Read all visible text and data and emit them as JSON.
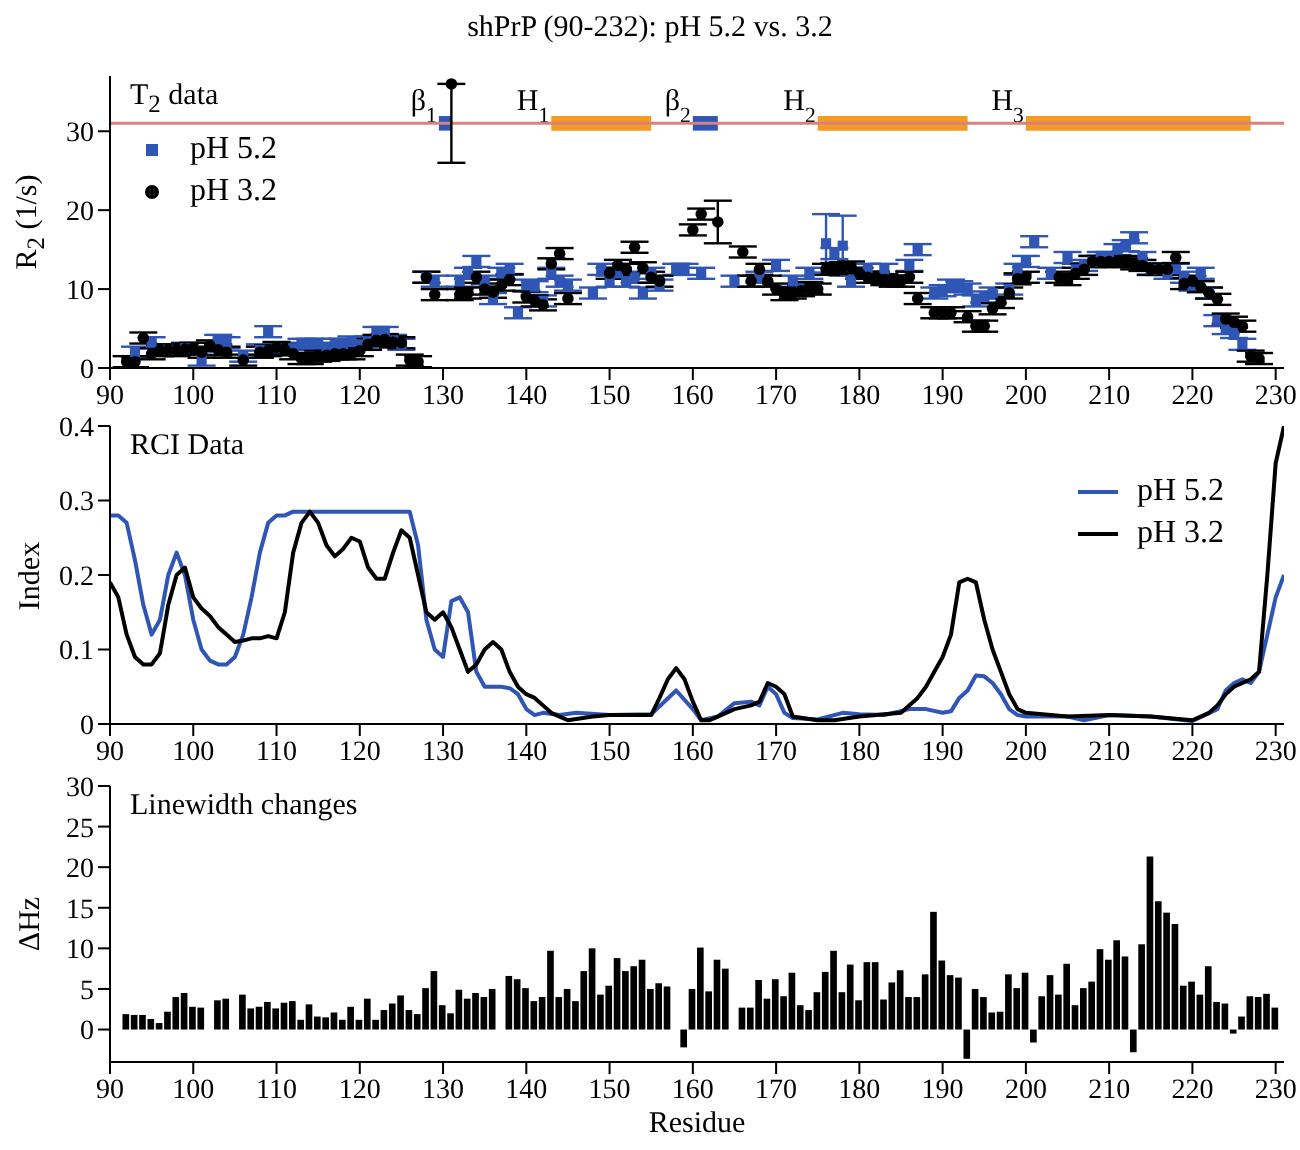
{
  "chart_data": [
    {
      "type": "scatter",
      "title": "shPrP (90-232): pH 5.2 vs. 3.2",
      "ylabel": "R$_{2}$ (1/s)",
      "annotations": [
        "T$_{2}$ data"
      ],
      "xlim": [
        90,
        231
      ],
      "xticks": [
        90,
        100,
        110,
        120,
        130,
        140,
        150,
        160,
        170,
        180,
        190,
        200,
        210,
        220,
        230
      ],
      "ylim": [
        0,
        37
      ],
      "yticks": [
        0,
        10,
        20,
        30
      ],
      "legend": "top left",
      "ref_lines": [
        {
          "axis": "y",
          "value": 31,
          "color": "#d98080"
        }
      ],
      "bands": [
        {
          "axis": "x",
          "from": 129.5,
          "to": 131,
          "label": "β$_{1}$",
          "color": "#2f55b5"
        },
        {
          "axis": "x",
          "from": 143,
          "to": 155,
          "label": "H$_{1}$",
          "color": "#f59a23"
        },
        {
          "axis": "x",
          "from": 160,
          "to": 163,
          "label": "β$_{2}$",
          "color": "#2f55b5"
        },
        {
          "axis": "x",
          "from": 175,
          "to": 193,
          "label": "H$_{2}$",
          "color": "#f59a23"
        },
        {
          "axis": "x",
          "from": 200,
          "to": 227,
          "label": "H$_{3}$",
          "color": "#f59a23"
        }
      ],
      "series": [
        {
          "name": "pH 5.2",
          "color": "#2f55b5",
          "marker": "square",
          "x": [
            93,
            95,
            97,
            99,
            101,
            103,
            104,
            106,
            108,
            109,
            110,
            112,
            113,
            114,
            115,
            116,
            117,
            118,
            119,
            120,
            121,
            122,
            123,
            124,
            125,
            128,
            129,
            132,
            133,
            134,
            135,
            136,
            137,
            138,
            139,
            140,
            141,
            142,
            143,
            144,
            145,
            148,
            149,
            150,
            151,
            152,
            153,
            154,
            155,
            156,
            158,
            159,
            161,
            165,
            168,
            170,
            172,
            173,
            174,
            176,
            177,
            178,
            179,
            180,
            181,
            183,
            186,
            187,
            189,
            190,
            191,
            192,
            193,
            194,
            195,
            196,
            198,
            199,
            200,
            201,
            203,
            205,
            206,
            207,
            208,
            209,
            210,
            211,
            212,
            213,
            214,
            215,
            216,
            217,
            218,
            219,
            220,
            221,
            222,
            223,
            224,
            225,
            226
          ],
          "values": [
            2.0,
            3.2,
            2.3,
            2.5,
            1.0,
            3.5,
            3.2,
            1.5,
            2.3,
            4.6,
            2.5,
            2.5,
            3.0,
            3.0,
            3.0,
            2.5,
            3.0,
            3.0,
            3.3,
            3.0,
            3.3,
            4.5,
            4.5,
            3.5,
            3.0,
            11.5,
            11.0,
            11.0,
            12.0,
            13.5,
            11.0,
            8.8,
            12.0,
            12.5,
            7.0,
            10.5,
            10.3,
            8.5,
            12.0,
            11.0,
            10.5,
            9.5,
            12.5,
            11.0,
            12.0,
            11.0,
            11.5,
            9.5,
            12.0,
            10.5,
            12.5,
            12.5,
            12.0,
            11.0,
            11.5,
            13.0,
            11.0,
            10.0,
            12.0,
            15.8,
            14.5,
            15.5,
            11.0,
            12.0,
            12.5,
            12.5,
            13.0,
            15.0,
            9.5,
            9.8,
            10.5,
            10.3,
            10.0,
            8.5,
            9.0,
            9.5,
            10.0,
            12.5,
            13.5,
            16.0,
            12.0,
            14.0,
            12.5,
            13.0,
            13.5,
            14.0,
            14.0,
            15.0,
            15.5,
            16.5,
            14.0,
            12.5,
            12.5,
            12.0,
            12.5,
            11.5,
            10.5,
            12.0,
            9.5,
            6.0,
            5.0,
            4.5,
            3.0
          ],
          "errors": [
            0.7,
            0.7,
            0.7,
            0.7,
            0.7,
            0.7,
            0.7,
            0.7,
            0.7,
            0.7,
            0.7,
            0.7,
            0.7,
            0.7,
            0.7,
            0.7,
            0.7,
            0.7,
            0.7,
            0.7,
            0.7,
            0.7,
            0.7,
            0.7,
            0.7,
            0.7,
            0.7,
            0.7,
            0.7,
            0.7,
            0.7,
            0.7,
            0.7,
            0.7,
            0.7,
            0.7,
            0.7,
            0.7,
            0.7,
            0.7,
            0.7,
            0.7,
            0.7,
            0.7,
            0.7,
            0.7,
            0.7,
            0.7,
            0.7,
            0.7,
            0.7,
            0.7,
            0.7,
            0.7,
            0.7,
            0.7,
            0.7,
            0.7,
            0.7,
            3.7,
            0.7,
            3.8,
            0.7,
            0.7,
            0.7,
            0.7,
            0.7,
            0.7,
            0.7,
            0.7,
            0.7,
            0.7,
            0.7,
            0.7,
            0.7,
            0.7,
            0.7,
            0.7,
            0.7,
            0.7,
            0.7,
            0.7,
            0.7,
            0.7,
            0.7,
            0.7,
            0.7,
            0.7,
            0.7,
            0.7,
            0.7,
            0.7,
            0.7,
            0.7,
            0.7,
            0.7,
            0.7,
            0.7,
            0.7,
            0.7,
            0.7,
            0.7,
            0.7
          ]
        },
        {
          "name": "pH 3.2",
          "color": "#000000",
          "marker": "circle",
          "x": [
            92,
            93,
            94,
            95,
            96,
            97,
            98,
            99,
            100,
            101,
            102,
            103,
            104,
            106,
            108,
            109,
            110,
            111,
            112,
            113,
            114,
            115,
            116,
            117,
            118,
            119,
            120,
            121,
            122,
            123,
            124,
            125,
            126,
            127,
            128,
            129,
            131,
            132,
            133,
            134,
            135,
            136,
            137,
            138,
            140,
            141,
            142,
            143,
            144,
            145,
            150,
            151,
            152,
            153,
            154,
            155,
            156,
            160,
            161,
            163,
            166,
            167,
            168,
            169,
            170,
            171,
            172,
            173,
            174,
            175,
            176,
            177,
            178,
            179,
            180,
            181,
            182,
            183,
            184,
            185,
            186,
            187,
            189,
            190,
            191,
            193,
            194,
            195,
            196,
            197,
            198,
            199,
            200,
            204,
            205,
            206,
            207,
            208,
            209,
            210,
            211,
            212,
            213,
            214,
            215,
            216,
            217,
            218,
            219,
            220,
            221,
            222,
            223,
            224,
            225,
            226,
            227,
            228
          ],
          "values": [
            0.8,
            0.8,
            3.8,
            1.8,
            2.2,
            2.3,
            2.2,
            2.4,
            2.5,
            2.0,
            2.8,
            2.3,
            2.0,
            1.0,
            2.0,
            2.2,
            2.6,
            2.3,
            1.8,
            1.2,
            1.2,
            1.5,
            1.6,
            1.8,
            1.8,
            1.8,
            2.2,
            3.0,
            3.5,
            3.6,
            3.3,
            3.2,
            1.0,
            0.8,
            11.5,
            9.3,
            36,
            9.3,
            9.5,
            11.5,
            10.0,
            9.6,
            10.5,
            11.2,
            9.0,
            8.5,
            8.0,
            13.2,
            14.5,
            8.8,
            12.0,
            13.0,
            12.5,
            15.3,
            12.7,
            11.5,
            11.0,
            17.5,
            19.5,
            18.5,
            14.7,
            11.0,
            12.5,
            11.0,
            10.0,
            9.3,
            9.5,
            9.8,
            10.2,
            10.0,
            12.5,
            12.6,
            12.7,
            12.8,
            12.0,
            11.5,
            11.5,
            11.2,
            11.0,
            11.0,
            11.5,
            8.8,
            7.0,
            7.0,
            7.0,
            6.5,
            5.3,
            5.3,
            7.5,
            8.3,
            9.5,
            11.3,
            11.5,
            11.5,
            11.2,
            12.0,
            12.5,
            13.5,
            13.5,
            13.5,
            13.5,
            13.5,
            13.2,
            13.0,
            12.5,
            12.5,
            12.5,
            14.0,
            10.7,
            11.0,
            10.3,
            9.5,
            8.7,
            6.2,
            5.8,
            5.3,
            1.5,
            1.2
          ],
          "errors": [
            0.7,
            0.7,
            0.7,
            0.7,
            0.7,
            0.7,
            0.7,
            0.7,
            0.7,
            0.7,
            0.7,
            0.7,
            0.7,
            0.7,
            0.7,
            0.7,
            0.7,
            0.7,
            0.7,
            0.7,
            0.7,
            0.7,
            0.7,
            0.7,
            0.7,
            0.7,
            0.7,
            0.7,
            0.7,
            0.7,
            0.7,
            0.7,
            0.7,
            0.7,
            0.7,
            0.7,
            [
              26,
              36
            ],
            0.7,
            0.7,
            0.7,
            0.7,
            0.7,
            0.7,
            0.7,
            0.7,
            0.7,
            0.7,
            0.7,
            0.7,
            0.7,
            0.7,
            0.7,
            0.7,
            0.7,
            0.7,
            0.7,
            0.7,
            0.7,
            0.7,
            2.7,
            0.7,
            0.7,
            0.7,
            0.7,
            0.7,
            0.7,
            0.7,
            0.7,
            0.7,
            0.7,
            0.7,
            0.7,
            0.7,
            0.7,
            0.7,
            0.7,
            0.7,
            0.7,
            0.7,
            0.7,
            0.7,
            0.7,
            0.7,
            0.7,
            0.7,
            0.7,
            0.7,
            0.7,
            0.7,
            0.7,
            0.7,
            0.7,
            0.7,
            0.7,
            0.7,
            0.7,
            0.7,
            0.7,
            0.7,
            0.7,
            0.7,
            0.7,
            0.7,
            0.7,
            0.7,
            0.7,
            0.7,
            0.7,
            0.7,
            0.7,
            0.7,
            0.7,
            0.7,
            0.7,
            0.7,
            0.7,
            0.7,
            0.7
          ]
        }
      ]
    },
    {
      "type": "line",
      "ylabel": "Index",
      "annotations": [
        "RCI Data"
      ],
      "xlim": [
        90,
        231
      ],
      "xticks": [
        90,
        100,
        110,
        120,
        130,
        140,
        150,
        160,
        170,
        180,
        190,
        200,
        210,
        220,
        230
      ],
      "ylim": [
        0,
        0.4
      ],
      "yticks": [
        0,
        0.1,
        0.2,
        0.3,
        0.4
      ],
      "legend": "top right",
      "series": [
        {
          "name": "pH 5.2",
          "color": "#2f55b5",
          "x": [
            90,
            91,
            92,
            93,
            94,
            95,
            96,
            97,
            98,
            99,
            100,
            101,
            102,
            103,
            104,
            105,
            106,
            107,
            108,
            109,
            110,
            111,
            112,
            126,
            127,
            128,
            129,
            130,
            131,
            132,
            133,
            134,
            135,
            136,
            137,
            138,
            139,
            140,
            141,
            142,
            144,
            146,
            150,
            155,
            158,
            160,
            161,
            163,
            165,
            167,
            168,
            169,
            170,
            171,
            172,
            175,
            178,
            180,
            183,
            186,
            188,
            190,
            191,
            192,
            193,
            194,
            195,
            196,
            197,
            198,
            199,
            200,
            205,
            207,
            210,
            215,
            220,
            223,
            224,
            225,
            226,
            227,
            228,
            229,
            230,
            231
          ],
          "values": [
            0.28,
            0.28,
            0.27,
            0.22,
            0.16,
            0.12,
            0.14,
            0.2,
            0.23,
            0.2,
            0.14,
            0.1,
            0.085,
            0.08,
            0.08,
            0.09,
            0.12,
            0.17,
            0.23,
            0.27,
            0.28,
            0.28,
            0.285,
            0.285,
            0.24,
            0.14,
            0.1,
            0.09,
            0.165,
            0.17,
            0.15,
            0.07,
            0.05,
            0.05,
            0.05,
            0.048,
            0.04,
            0.02,
            0.012,
            0.015,
            0.012,
            0.015,
            0.012,
            0.013,
            0.045,
            0.02,
            0.005,
            0.01,
            0.028,
            0.03,
            0.025,
            0.05,
            0.04,
            0.015,
            0.008,
            0.006,
            0.015,
            0.013,
            0.012,
            0.02,
            0.02,
            0.015,
            0.017,
            0.035,
            0.045,
            0.065,
            0.064,
            0.055,
            0.04,
            0.02,
            0.012,
            0.01,
            0.01,
            0.005,
            0.012,
            0.01,
            0.004,
            0.02,
            0.045,
            0.055,
            0.06,
            0.055,
            0.07,
            0.12,
            0.17,
            0.2
          ]
        },
        {
          "name": "pH 3.2",
          "color": "#000000",
          "x": [
            90,
            91,
            92,
            93,
            94,
            95,
            96,
            97,
            98,
            99,
            100,
            101,
            102,
            103,
            104,
            105,
            106,
            107,
            108,
            109,
            110,
            111,
            112,
            113,
            114,
            115,
            116,
            117,
            118,
            119,
            120,
            121,
            122,
            123,
            124,
            125,
            126,
            127,
            128,
            129,
            130,
            131,
            132,
            133,
            134,
            135,
            136,
            137,
            138,
            139,
            140,
            141,
            142,
            143,
            144,
            145,
            148,
            150,
            155,
            156,
            157,
            158,
            159,
            160,
            161,
            162,
            163,
            165,
            167,
            168,
            169,
            170,
            171,
            172,
            175,
            177,
            180,
            185,
            187,
            188,
            189,
            190,
            191,
            192,
            193,
            194,
            195,
            196,
            197,
            198,
            199,
            200,
            205,
            210,
            215,
            220,
            222,
            223,
            224,
            225,
            226,
            227,
            228,
            229,
            230,
            231
          ],
          "values": [
            0.19,
            0.17,
            0.12,
            0.09,
            0.08,
            0.08,
            0.095,
            0.16,
            0.2,
            0.21,
            0.17,
            0.155,
            0.145,
            0.13,
            0.12,
            0.11,
            0.112,
            0.115,
            0.115,
            0.118,
            0.115,
            0.15,
            0.23,
            0.27,
            0.285,
            0.27,
            0.24,
            0.225,
            0.235,
            0.25,
            0.245,
            0.21,
            0.195,
            0.195,
            0.23,
            0.26,
            0.25,
            0.2,
            0.15,
            0.14,
            0.15,
            0.13,
            0.1,
            0.07,
            0.08,
            0.1,
            0.11,
            0.1,
            0.07,
            0.05,
            0.04,
            0.035,
            0.025,
            0.015,
            0.01,
            0.005,
            0.01,
            0.012,
            0.012,
            0.035,
            0.06,
            0.075,
            0.06,
            0.03,
            0.005,
            0.005,
            0.01,
            0.02,
            0.025,
            0.03,
            0.055,
            0.05,
            0.04,
            0.01,
            0.005,
            0.005,
            0.01,
            0.015,
            0.035,
            0.05,
            0.07,
            0.09,
            0.12,
            0.19,
            0.195,
            0.19,
            0.14,
            0.1,
            0.07,
            0.04,
            0.02,
            0.015,
            0.01,
            0.012,
            0.01,
            0.005,
            0.015,
            0.025,
            0.04,
            0.05,
            0.055,
            0.06,
            0.07,
            0.2,
            0.35,
            0.4
          ]
        }
      ]
    },
    {
      "type": "bar",
      "ylabel": "ΔHz",
      "xlabel": "Residue",
      "annotations": [
        "Linewidth changes"
      ],
      "xlim": [
        90,
        231
      ],
      "xticks": [
        90,
        100,
        110,
        120,
        130,
        140,
        150,
        160,
        170,
        180,
        190,
        200,
        210,
        220,
        230
      ],
      "ylim": [
        -4,
        30
      ],
      "yticks": [
        0,
        5,
        10,
        15,
        20,
        25,
        30
      ],
      "color": "#000000",
      "x": [
        92,
        93,
        94,
        95,
        96,
        97,
        98,
        99,
        100,
        101,
        102,
        103,
        104,
        105,
        106,
        107,
        108,
        109,
        110,
        111,
        112,
        113,
        114,
        115,
        116,
        117,
        118,
        119,
        120,
        121,
        122,
        123,
        124,
        125,
        126,
        127,
        128,
        129,
        130,
        131,
        132,
        133,
        134,
        135,
        136,
        137,
        138,
        139,
        140,
        141,
        142,
        143,
        144,
        145,
        146,
        147,
        148,
        149,
        150,
        151,
        152,
        153,
        154,
        155,
        156,
        157,
        158,
        159,
        160,
        161,
        162,
        163,
        164,
        165,
        166,
        167,
        168,
        169,
        170,
        171,
        172,
        173,
        174,
        175,
        176,
        177,
        178,
        179,
        180,
        181,
        182,
        183,
        184,
        185,
        186,
        187,
        188,
        189,
        190,
        191,
        192,
        193,
        194,
        195,
        196,
        197,
        198,
        199,
        200,
        201,
        202,
        203,
        204,
        205,
        206,
        207,
        208,
        209,
        210,
        211,
        212,
        213,
        214,
        215,
        216,
        217,
        218,
        219,
        220,
        221,
        222,
        223,
        224,
        225,
        226,
        227,
        228,
        229,
        230
      ],
      "values": [
        1.9,
        1.8,
        1.8,
        1.3,
        0.8,
        2.2,
        4.0,
        4.5,
        2.8,
        2.7,
        0,
        3.6,
        3.8,
        0,
        4.3,
        2.6,
        2.8,
        3.4,
        2.6,
        3.3,
        3.5,
        1.2,
        3.1,
        1.6,
        1.5,
        2.1,
        1.2,
        2.8,
        1.2,
        3.8,
        1.2,
        2.4,
        3.2,
        4.2,
        2.4,
        1.9,
        5.1,
        7.2,
        3.0,
        2.0,
        4.9,
        3.8,
        4.5,
        4.0,
        5.0,
        0,
        6.6,
        6.2,
        5.1,
        3.5,
        4.0,
        9.7,
        4.0,
        5.0,
        3.5,
        7.2,
        10.0,
        4.3,
        5.4,
        8.8,
        7.2,
        7.8,
        8.6,
        5.0,
        5.7,
        5.3,
        0,
        -2.2,
        5.0,
        10.1,
        4.7,
        8.6,
        7.5,
        0,
        2.7,
        2.7,
        6.1,
        3.8,
        6.2,
        4.1,
        7.0,
        3.0,
        2.4,
        4.6,
        7.1,
        9.7,
        4.6,
        8.0,
        3.6,
        8.3,
        8.3,
        3.7,
        5.8,
        7.3,
        4.0,
        4.0,
        6.8,
        14.5,
        8.5,
        6.7,
        6.4,
        -3.6,
        5.0,
        4.0,
        2.1,
        2.2,
        6.8,
        5.1,
        7.0,
        -1.6,
        4.1,
        6.7,
        4.3,
        8.1,
        3.0,
        5.1,
        5.9,
        9.9,
        8.6,
        11.0,
        9.0,
        -2.8,
        10.5,
        21.3,
        15.8,
        14.4,
        13.0,
        5.4,
        5.9,
        4.3,
        7.8,
        3.4,
        3.2,
        -0.5,
        1.6,
        4.1,
        4.0,
        4.4,
        2.7
      ]
    }
  ]
}
